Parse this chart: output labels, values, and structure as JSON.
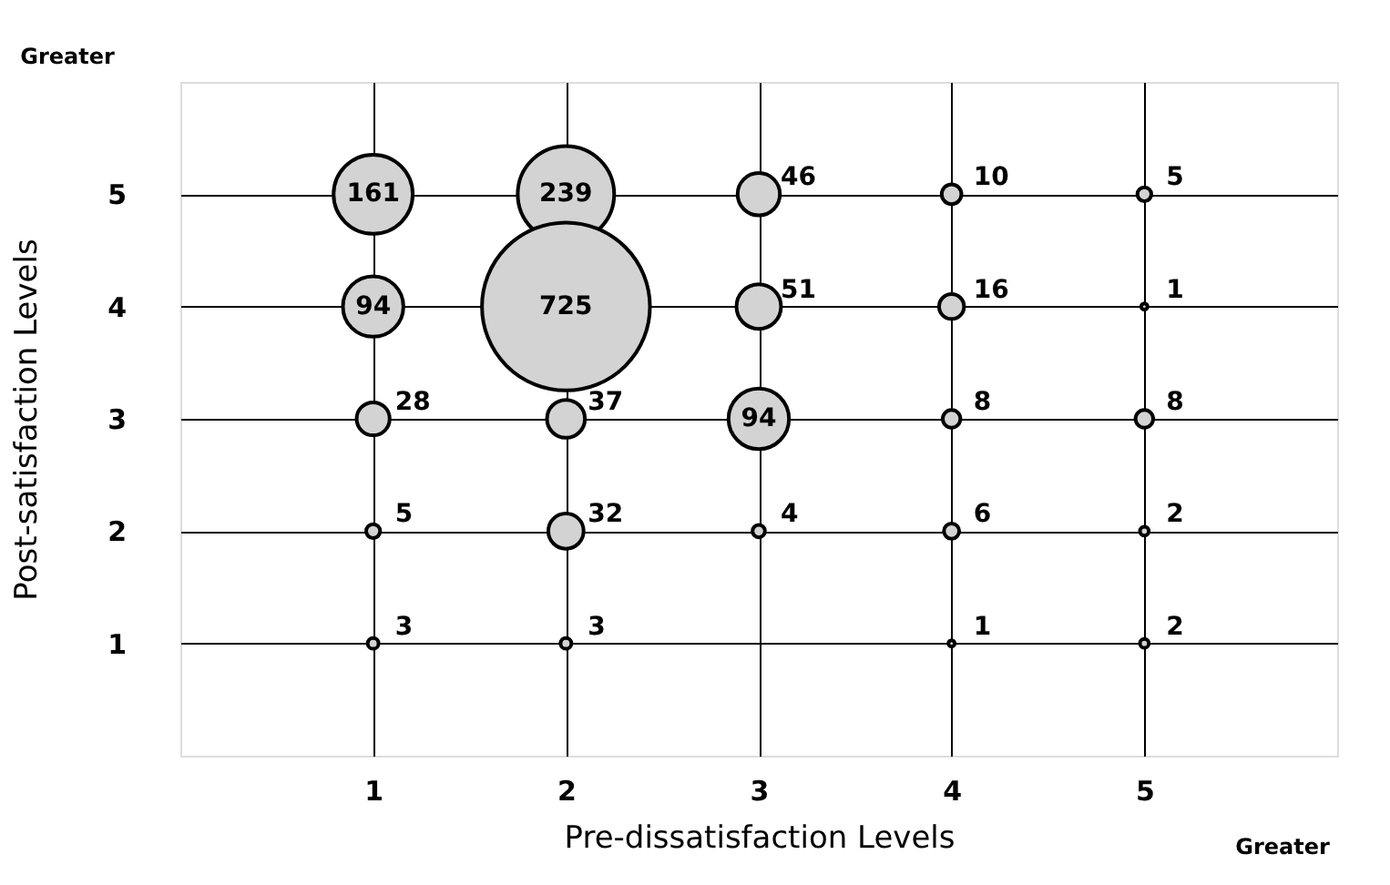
{
  "chart_data": {
    "type": "bubble",
    "xlabel": "Pre-dissatisfaction Levels",
    "ylabel": "Post-satisfaction Levels",
    "x": [
      1,
      2,
      3,
      4,
      5,
      1,
      2,
      3,
      4,
      5,
      1,
      2,
      3,
      4,
      5,
      1,
      2,
      3,
      4,
      5,
      1,
      2,
      4,
      5
    ],
    "series": [
      {
        "color": "#d3d3d3",
        "values": [
          5,
          5,
          5,
          5,
          5,
          4,
          4,
          4,
          4,
          4,
          3,
          3,
          3,
          3,
          3,
          2,
          2,
          2,
          2,
          2,
          1,
          1,
          1,
          1
        ],
        "sizes": [
          161,
          239,
          46,
          10,
          5,
          94,
          725,
          51,
          16,
          1,
          28,
          37,
          94,
          8,
          8,
          5,
          32,
          4,
          6,
          2,
          3,
          3,
          1,
          2
        ],
        "value_labels": [
          "161",
          "239",
          "46",
          "10",
          "5",
          "94",
          "725",
          "51",
          "16",
          "1",
          "28",
          "37",
          "94",
          "8",
          "8",
          "5",
          "32",
          "4",
          "6",
          "2",
          "3",
          "3",
          "1",
          "2"
        ]
      }
    ],
    "xlim": [
      0,
      6
    ],
    "ylim": [
      0,
      6
    ],
    "xticks": [
      1,
      2,
      3,
      4,
      5
    ],
    "yticks": [
      1,
      2,
      3,
      4,
      5
    ],
    "grid": true,
    "annotations": [
      {
        "text": "Greater"
      },
      {
        "text": "Greater"
      }
    ]
  }
}
